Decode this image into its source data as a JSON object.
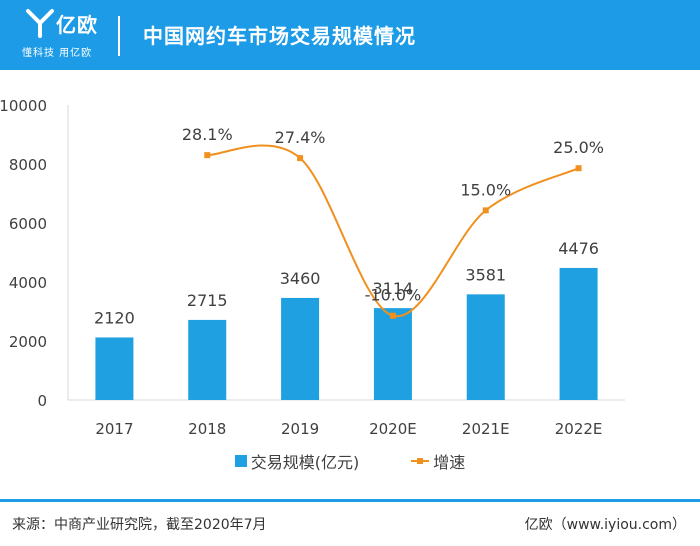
{
  "header": {
    "brand": "亿欧",
    "slogan": "懂科技 用亿欧",
    "title": "中国网约车市场交易规模情况",
    "color": "#1e9be6"
  },
  "chart_data": {
    "type": "bar+line",
    "categories": [
      "2017",
      "2018",
      "2019",
      "2020E",
      "2021E",
      "2022E"
    ],
    "series": [
      {
        "name": "交易规模(亿元)",
        "type": "bar",
        "axis": "left",
        "color": "#1ea0e1",
        "values": [
          2120,
          2715,
          3460,
          3114,
          3581,
          4476
        ],
        "labels": [
          "2120",
          "2715",
          "3460",
          "3114",
          "3581",
          "4476"
        ]
      },
      {
        "name": "增速",
        "type": "line",
        "axis": "right",
        "color": "#f0901e",
        "values": [
          null,
          28.1,
          27.4,
          -10.0,
          15.0,
          25.0
        ],
        "labels": [
          "",
          "28.1%",
          "27.4%",
          "-10.0%",
          "15.0%",
          "25.0%"
        ]
      }
    ],
    "yleft": {
      "ticks": [
        "10000",
        "8000",
        "6000",
        "4000",
        "2000",
        "0"
      ],
      "min": 0,
      "max": 10000
    },
    "yright": {
      "min": -30,
      "max": 40
    },
    "legend_position": "bottom"
  },
  "footer": {
    "source": "来源：中商产业研究院，截至2020年7月",
    "brand": "亿欧（www.iyiou.com）"
  }
}
